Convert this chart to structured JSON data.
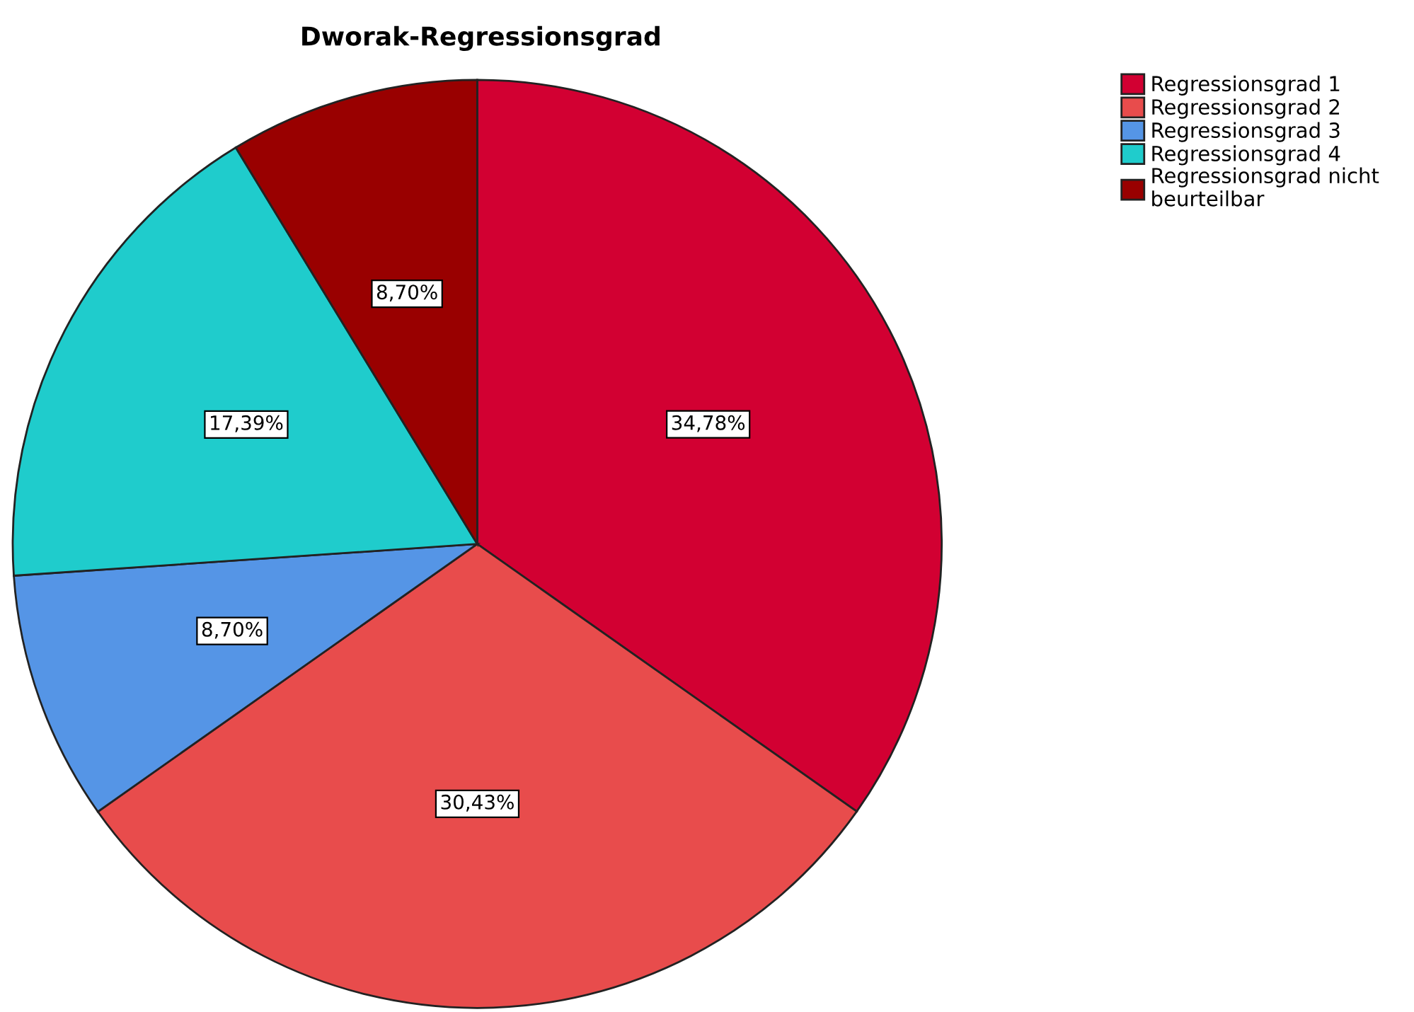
{
  "chart_data": {
    "type": "pie",
    "title": "Dworak-Regressionsgrad",
    "categories": [
      "Regressionsgrad 1",
      "Regressionsgrad 2",
      "Regressionsgrad 3",
      "Regressionsgrad 4",
      "Regressionsgrad nicht\nbeurteilbar"
    ],
    "values": [
      34.78,
      30.43,
      8.7,
      17.39,
      8.7
    ],
    "value_labels": [
      "34,78%",
      "30,43%",
      "8,70%",
      "17,39%",
      "8,70%"
    ],
    "colors": [
      "#d20032",
      "#e84c4c",
      "#5595e6",
      "#1fcccc",
      "#990000"
    ],
    "legend": "top right"
  }
}
